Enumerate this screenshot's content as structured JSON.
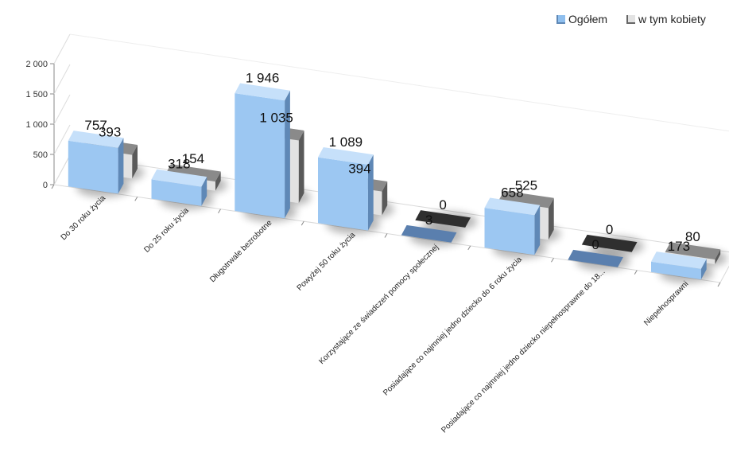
{
  "chart_data": {
    "type": "bar",
    "categories": [
      "Do 30 roku życia",
      "Do 25 roku życia",
      "Długotrwale bezrobotne",
      "Powyżej 50 roku życia",
      "Korzystające ze świadczeń pomocy społecznej",
      "Posiadające co najmniej jedno dziecko do 6 roku życia",
      "Posiadające co najmniej jedno dziecko niepełnosprawne do 18...",
      "Niepełnosprawni"
    ],
    "series": [
      {
        "name": "Ogółem",
        "values": [
          757,
          318,
          1946,
          1089,
          3,
          658,
          0,
          173
        ]
      },
      {
        "name": "w tym kobiety",
        "values": [
          393,
          154,
          1035,
          394,
          0,
          525,
          0,
          80
        ]
      }
    ],
    "value_labels": [
      [
        "757",
        "318",
        "1 946",
        "1 089",
        "3",
        "658",
        "0",
        "173"
      ],
      [
        "393",
        "154",
        "1 035",
        "394",
        "0",
        "525",
        "0",
        "80"
      ]
    ],
    "y_ticks": [
      "0",
      "500",
      "1 000",
      "1 500",
      "2 000"
    ],
    "y_tick_values": [
      0,
      500,
      1000,
      1500,
      2000
    ],
    "ylim": [
      0,
      2000
    ],
    "title": "",
    "xlabel": "",
    "ylabel": "",
    "legend_position": "top-right",
    "grid": false,
    "colors": {
      "s0_front": "#9cc7f2",
      "s0_side": "#5f88b6",
      "s0_top": "#c6e0fa",
      "s1_front": "#e2e2e2",
      "s1_side": "#5a5a5a",
      "s1_top": "#8a8a8a"
    }
  }
}
